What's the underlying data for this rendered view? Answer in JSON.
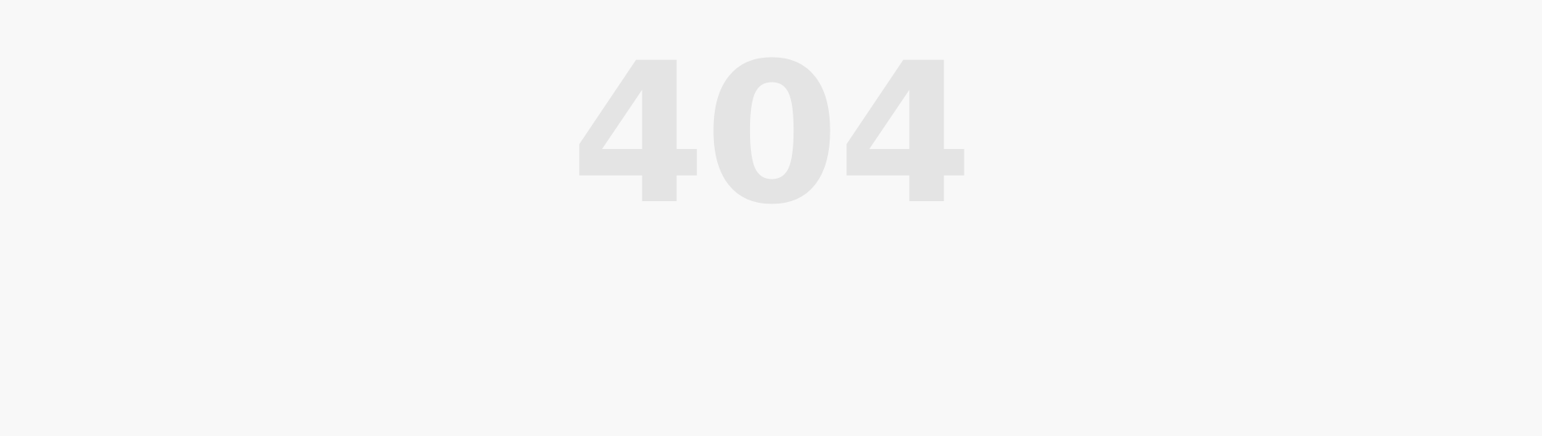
{
  "error": {
    "code": "404"
  },
  "colors": {
    "background": "#f8f8f8",
    "code_text": "#e4e4e4"
  }
}
